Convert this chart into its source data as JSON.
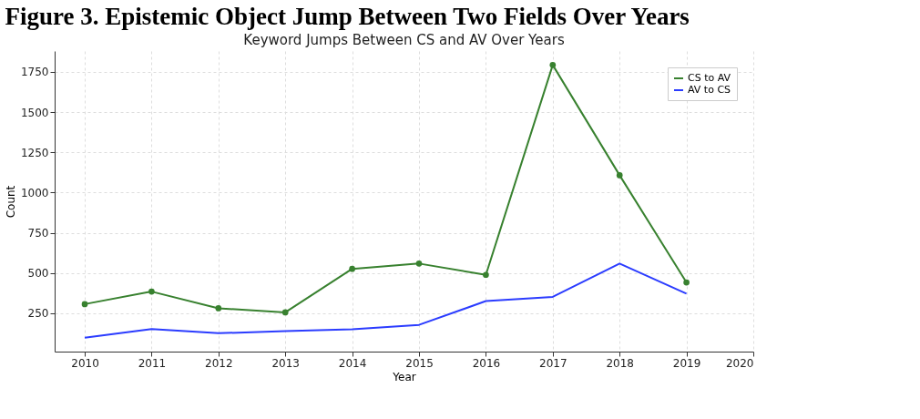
{
  "chart_data": {
    "type": "line",
    "title": "Figure 3.  Epistemic Object Jump Between Two Fields Over Years",
    "subtitle": "Keyword Jumps Between CS and AV Over Years",
    "xlabel": "Year",
    "ylabel": "Count",
    "x": [
      2010,
      2011,
      2012,
      2013,
      2014,
      2015,
      2016,
      2017,
      2018,
      2019
    ],
    "series": [
      {
        "name": "CS to AV",
        "color": "#38812f",
        "marker": "circle",
        "values": [
          307,
          385,
          281,
          256,
          526,
          559,
          489,
          1793,
          1108,
          442
        ]
      },
      {
        "name": "AV to CS",
        "color": "#2b3cff",
        "marker": "none",
        "values": [
          98,
          152,
          126,
          139,
          150,
          178,
          326,
          352,
          559,
          372
        ]
      }
    ],
    "xlim": [
      2009.55,
      2020.0
    ],
    "xticks": [
      2010,
      2011,
      2012,
      2013,
      2014,
      2015,
      2016,
      2017,
      2018,
      2019,
      2020
    ],
    "ylim": [
      12,
      1880
    ],
    "yticks": [
      250,
      500,
      750,
      1000,
      1250,
      1500,
      1750
    ],
    "grid": true,
    "legend": "top right",
    "line_style": "solid"
  }
}
